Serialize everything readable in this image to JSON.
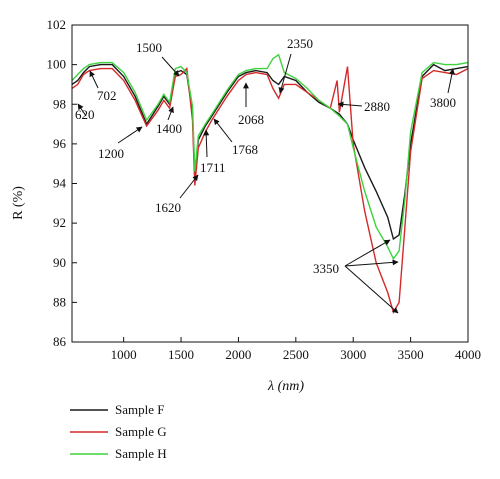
{
  "chart_data": {
    "type": "line",
    "xlabel": "λ (nm)",
    "ylabel": "R (%)",
    "xlim": [
      550,
      4000
    ],
    "ylim": [
      86,
      102
    ],
    "x_ticks": [
      1000,
      1500,
      2000,
      2500,
      3000,
      3500,
      4000
    ],
    "y_ticks": [
      86,
      88,
      90,
      92,
      94,
      96,
      98,
      100,
      102
    ],
    "grid": false,
    "legend_position": "bottom-left, below plot",
    "series": [
      {
        "name": "Sample F",
        "color": "#1a1a1a",
        "points": [
          [
            550,
            99.0
          ],
          [
            600,
            99.2
          ],
          [
            650,
            99.6
          ],
          [
            702,
            99.9
          ],
          [
            800,
            100.0
          ],
          [
            900,
            100.0
          ],
          [
            1000,
            99.4
          ],
          [
            1100,
            98.4
          ],
          [
            1200,
            97.0
          ],
          [
            1300,
            97.9
          ],
          [
            1350,
            98.4
          ],
          [
            1400,
            98.0
          ],
          [
            1450,
            99.6
          ],
          [
            1500,
            99.7
          ],
          [
            1550,
            99.5
          ],
          [
            1600,
            97.6
          ],
          [
            1620,
            94.3
          ],
          [
            1650,
            96.2
          ],
          [
            1711,
            96.9
          ],
          [
            1768,
            97.4
          ],
          [
            1900,
            98.6
          ],
          [
            2000,
            99.4
          ],
          [
            2068,
            99.6
          ],
          [
            2150,
            99.7
          ],
          [
            2250,
            99.6
          ],
          [
            2300,
            99.2
          ],
          [
            2350,
            99.0
          ],
          [
            2400,
            99.4
          ],
          [
            2500,
            99.2
          ],
          [
            2600,
            98.6
          ],
          [
            2700,
            98.1
          ],
          [
            2800,
            97.8
          ],
          [
            2880,
            97.5
          ],
          [
            2950,
            97.0
          ],
          [
            3000,
            96.2
          ],
          [
            3100,
            94.8
          ],
          [
            3200,
            93.6
          ],
          [
            3300,
            92.3
          ],
          [
            3350,
            91.2
          ],
          [
            3400,
            91.4
          ],
          [
            3450,
            93.5
          ],
          [
            3500,
            96.0
          ],
          [
            3600,
            99.4
          ],
          [
            3700,
            100.0
          ],
          [
            3800,
            99.7
          ],
          [
            3900,
            99.8
          ],
          [
            4000,
            99.9
          ]
        ]
      },
      {
        "name": "Sample G",
        "color": "#d42a2a",
        "points": [
          [
            550,
            98.8
          ],
          [
            600,
            99.0
          ],
          [
            650,
            99.5
          ],
          [
            702,
            99.7
          ],
          [
            800,
            99.8
          ],
          [
            900,
            99.8
          ],
          [
            1000,
            99.2
          ],
          [
            1100,
            98.2
          ],
          [
            1200,
            96.9
          ],
          [
            1300,
            97.7
          ],
          [
            1350,
            98.2
          ],
          [
            1400,
            97.8
          ],
          [
            1450,
            99.4
          ],
          [
            1500,
            99.5
          ],
          [
            1550,
            99.8
          ],
          [
            1600,
            97.2
          ],
          [
            1620,
            93.9
          ],
          [
            1650,
            95.8
          ],
          [
            1711,
            96.6
          ],
          [
            1768,
            97.2
          ],
          [
            1900,
            98.4
          ],
          [
            2000,
            99.2
          ],
          [
            2068,
            99.5
          ],
          [
            2150,
            99.6
          ],
          [
            2250,
            99.5
          ],
          [
            2300,
            98.8
          ],
          [
            2350,
            98.3
          ],
          [
            2400,
            99.0
          ],
          [
            2500,
            99.0
          ],
          [
            2600,
            98.6
          ],
          [
            2700,
            98.2
          ],
          [
            2800,
            97.8
          ],
          [
            2860,
            99.2
          ],
          [
            2880,
            97.6
          ],
          [
            2950,
            99.9
          ],
          [
            3000,
            96.0
          ],
          [
            3100,
            92.6
          ],
          [
            3200,
            90.0
          ],
          [
            3300,
            88.5
          ],
          [
            3350,
            87.5
          ],
          [
            3400,
            88.0
          ],
          [
            3450,
            91.8
          ],
          [
            3500,
            95.6
          ],
          [
            3600,
            99.3
          ],
          [
            3700,
            99.7
          ],
          [
            3800,
            99.6
          ],
          [
            3900,
            99.5
          ],
          [
            4000,
            99.8
          ]
        ]
      },
      {
        "name": "Sample H",
        "color": "#3ed23e",
        "points": [
          [
            550,
            99.2
          ],
          [
            600,
            99.5
          ],
          [
            650,
            99.8
          ],
          [
            702,
            100.0
          ],
          [
            800,
            100.1
          ],
          [
            900,
            100.1
          ],
          [
            1000,
            99.6
          ],
          [
            1100,
            98.6
          ],
          [
            1200,
            97.2
          ],
          [
            1300,
            98.0
          ],
          [
            1350,
            98.5
          ],
          [
            1400,
            98.1
          ],
          [
            1450,
            99.8
          ],
          [
            1500,
            99.9
          ],
          [
            1550,
            99.6
          ],
          [
            1600,
            97.9
          ],
          [
            1620,
            94.6
          ],
          [
            1650,
            96.4
          ],
          [
            1711,
            97.0
          ],
          [
            1768,
            97.5
          ],
          [
            1900,
            98.7
          ],
          [
            2000,
            99.5
          ],
          [
            2068,
            99.7
          ],
          [
            2150,
            99.8
          ],
          [
            2250,
            99.8
          ],
          [
            2300,
            100.3
          ],
          [
            2350,
            100.5
          ],
          [
            2400,
            99.6
          ],
          [
            2500,
            99.3
          ],
          [
            2600,
            98.8
          ],
          [
            2700,
            98.2
          ],
          [
            2800,
            97.8
          ],
          [
            2880,
            97.4
          ],
          [
            2950,
            97.0
          ],
          [
            3000,
            95.8
          ],
          [
            3100,
            93.6
          ],
          [
            3200,
            91.8
          ],
          [
            3300,
            90.8
          ],
          [
            3350,
            90.2
          ],
          [
            3400,
            90.6
          ],
          [
            3450,
            93.2
          ],
          [
            3500,
            96.6
          ],
          [
            3600,
            99.6
          ],
          [
            3700,
            100.1
          ],
          [
            3800,
            100.0
          ],
          [
            3900,
            100.0
          ],
          [
            4000,
            100.1
          ]
        ]
      }
    ],
    "annotations": [
      {
        "text": "620",
        "x": 620,
        "y": 99.0
      },
      {
        "text": "702",
        "x": 702,
        "y": 99.8
      },
      {
        "text": "1200",
        "x": 1200,
        "y": 97.0
      },
      {
        "text": "1400",
        "x": 1400,
        "y": 98.0
      },
      {
        "text": "1500",
        "x": 1500,
        "y": 99.7
      },
      {
        "text": "1620",
        "x": 1620,
        "y": 94.0
      },
      {
        "text": "1711",
        "x": 1711,
        "y": 96.9
      },
      {
        "text": "1768",
        "x": 1768,
        "y": 97.4
      },
      {
        "text": "2068",
        "x": 2068,
        "y": 99.5
      },
      {
        "text": "2350",
        "x": 2350,
        "y": 98.4
      },
      {
        "text": "2880",
        "x": 2880,
        "y": 97.7
      },
      {
        "text": "3350",
        "x": 3350,
        "y": 90.0
      },
      {
        "text": "3800",
        "x": 3800,
        "y": 99.7
      }
    ]
  }
}
